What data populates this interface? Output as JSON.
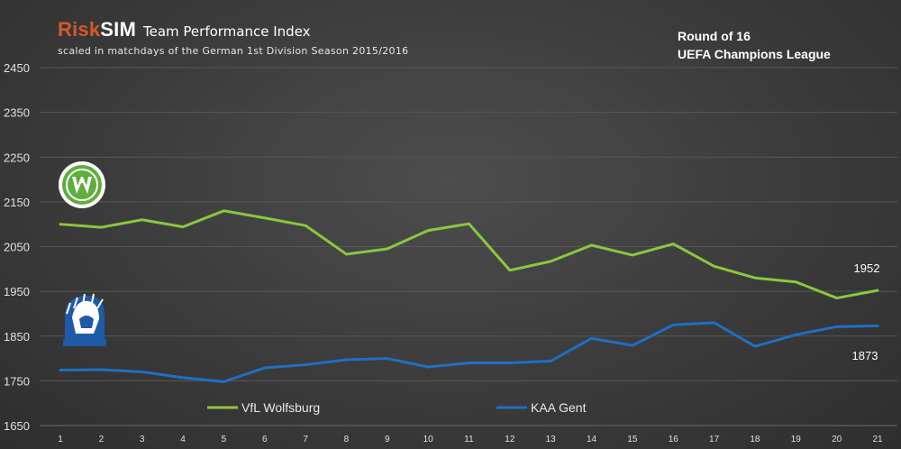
{
  "header": {
    "brand_risk": "Risk",
    "brand_sim": "SIM",
    "title": "Team Performance Index",
    "subtitle": "scaled in matchdays of the German 1st Division Season 2015/2016",
    "brand_color": "#d7582b"
  },
  "competition": {
    "round": "Round of 16",
    "name": "UEFA Champions League"
  },
  "logos": {
    "wolfsburg": {
      "icon": "vfl-wolfsburg-crest",
      "letter": "W",
      "color": "#5fae3e"
    },
    "gent": {
      "icon": "kaa-gent-crest",
      "color": "#1e5aa8"
    }
  },
  "chart_data": {
    "type": "line",
    "title": "Team Performance Index",
    "xlabel": "",
    "ylabel": "",
    "x": [
      1,
      2,
      3,
      4,
      5,
      6,
      7,
      8,
      9,
      10,
      11,
      12,
      13,
      14,
      15,
      16,
      17,
      18,
      19,
      20,
      21
    ],
    "yticks": [
      1650,
      1750,
      1850,
      1950,
      2050,
      2150,
      2250,
      2350,
      2450
    ],
    "ylim": [
      1650,
      2450
    ],
    "grid": true,
    "legend_placement": "bottom",
    "series": [
      {
        "name": "VfL Wolfsburg",
        "color": "#8cc63f",
        "values": [
          2100,
          2093,
          2110,
          2094,
          2130,
          2114,
          2097,
          2033,
          2045,
          2086,
          2101,
          1997,
          2017,
          2053,
          2031,
          2056,
          2006,
          1980,
          1971,
          1935,
          1952
        ],
        "end_label": "1952"
      },
      {
        "name": "KAA Gent",
        "color": "#1f6fc4",
        "values": [
          1774,
          1775,
          1770,
          1757,
          1748,
          1779,
          1786,
          1797,
          1800,
          1781,
          1790,
          1790,
          1794,
          1845,
          1829,
          1875,
          1880,
          1827,
          1853,
          1871,
          1873
        ],
        "end_label": "1873"
      }
    ]
  }
}
